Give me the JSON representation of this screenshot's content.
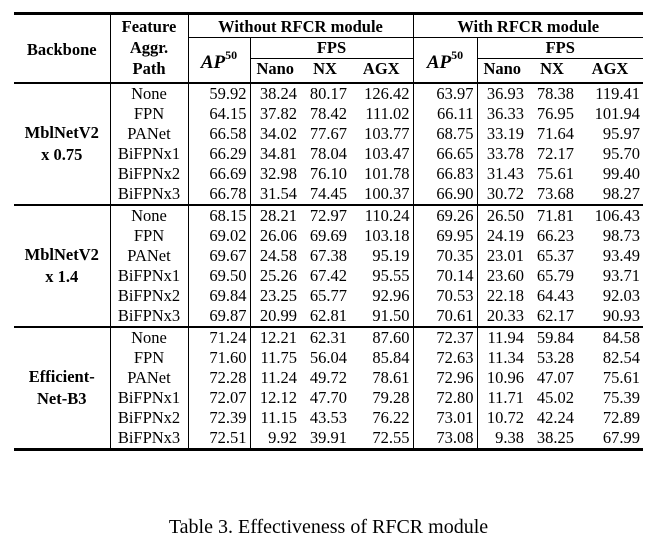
{
  "header": {
    "backbone": "Backbone",
    "feature_line1": "Feature",
    "feature_line2": "Aggr.",
    "feature_line3": "Path",
    "without": "Without RFCR module",
    "with": "With RFCR module",
    "fps": "FPS",
    "ap_main": "AP",
    "ap_sup": "50",
    "nano": "Nano",
    "nx": "NX",
    "agx": "AGX"
  },
  "groups": [
    {
      "backbone_line1": "MblNetV2",
      "backbone_line2": "x 0.75",
      "rows": [
        [
          "None",
          "59.92",
          "38.24",
          "80.17",
          "126.42",
          "63.97",
          "36.93",
          "78.38",
          "119.41"
        ],
        [
          "FPN",
          "64.15",
          "37.82",
          "78.42",
          "111.02",
          "66.11",
          "36.33",
          "76.95",
          "101.94"
        ],
        [
          "PANet",
          "66.58",
          "34.02",
          "77.67",
          "103.77",
          "68.75",
          "33.19",
          "71.64",
          "95.97"
        ],
        [
          "BiFPNx1",
          "66.29",
          "34.81",
          "78.04",
          "103.47",
          "66.65",
          "33.78",
          "72.17",
          "95.70"
        ],
        [
          "BiFPNx2",
          "66.69",
          "32.98",
          "76.10",
          "101.78",
          "66.83",
          "31.43",
          "75.61",
          "99.40"
        ],
        [
          "BiFPNx3",
          "66.78",
          "31.54",
          "74.45",
          "100.37",
          "66.90",
          "30.72",
          "73.68",
          "98.27"
        ]
      ]
    },
    {
      "backbone_line1": "MblNetV2",
      "backbone_line2": "x 1.4",
      "rows": [
        [
          "None",
          "68.15",
          "28.21",
          "72.97",
          "110.24",
          "69.26",
          "26.50",
          "71.81",
          "106.43"
        ],
        [
          "FPN",
          "69.02",
          "26.06",
          "69.69",
          "103.18",
          "69.95",
          "24.19",
          "66.23",
          "98.73"
        ],
        [
          "PANet",
          "69.67",
          "24.58",
          "67.38",
          "95.19",
          "70.35",
          "23.01",
          "65.37",
          "93.49"
        ],
        [
          "BiFPNx1",
          "69.50",
          "25.26",
          "67.42",
          "95.55",
          "70.14",
          "23.60",
          "65.79",
          "93.71"
        ],
        [
          "BiFPNx2",
          "69.84",
          "23.25",
          "65.77",
          "92.96",
          "70.53",
          "22.18",
          "64.43",
          "92.03"
        ],
        [
          "BiFPNx3",
          "69.87",
          "20.99",
          "62.81",
          "91.50",
          "70.61",
          "20.33",
          "62.17",
          "90.93"
        ]
      ]
    },
    {
      "backbone_line1": "Efficient-",
      "backbone_line2": "Net-B3",
      "rows": [
        [
          "None",
          "71.24",
          "12.21",
          "62.31",
          "87.60",
          "72.37",
          "11.94",
          "59.84",
          "84.58"
        ],
        [
          "FPN",
          "71.60",
          "11.75",
          "56.04",
          "85.84",
          "72.63",
          "11.34",
          "53.28",
          "82.54"
        ],
        [
          "PANet",
          "72.28",
          "11.24",
          "49.72",
          "78.61",
          "72.96",
          "10.96",
          "47.07",
          "75.61"
        ],
        [
          "BiFPNx1",
          "72.07",
          "12.12",
          "47.70",
          "79.28",
          "72.80",
          "11.71",
          "45.02",
          "75.39"
        ],
        [
          "BiFPNx2",
          "72.39",
          "11.15",
          "43.53",
          "76.22",
          "73.01",
          "10.72",
          "42.24",
          "72.89"
        ],
        [
          "BiFPNx3",
          "72.51",
          "9.92",
          "39.91",
          "72.55",
          "73.08",
          "9.38",
          "38.25",
          "67.99"
        ]
      ]
    }
  ],
  "caption": "Table 3. Effectiveness of RFCR module"
}
